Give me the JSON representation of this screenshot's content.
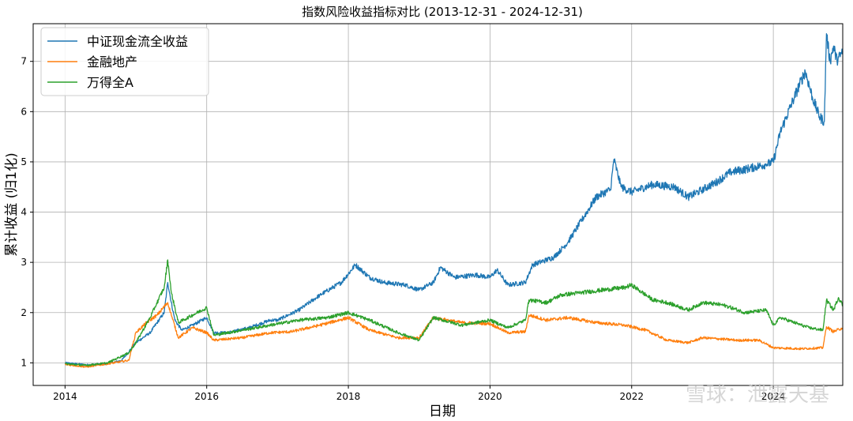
{
  "chart_data": {
    "type": "line",
    "title": "指数风险收益指标对比 (2013-12-31 - 2024-12-31)",
    "xlabel": "日期",
    "ylabel": "累计收益 (归1化)",
    "xlim": [
      2013.55,
      2024.98
    ],
    "ylim": [
      0.55,
      7.75
    ],
    "x_ticks": [
      "2014",
      "2016",
      "2018",
      "2020",
      "2022",
      "2024"
    ],
    "y_ticks": [
      "1",
      "2",
      "3",
      "4",
      "5",
      "6",
      "7"
    ],
    "grid": true,
    "legend_position": "top-left",
    "colors": {
      "blue": "#1f77b4",
      "orange": "#ff7f0e",
      "green": "#2ca02c"
    },
    "series": [
      {
        "name": "中证现金流全收益",
        "color": "#1f77b4",
        "points": [
          [
            2014.0,
            1.0
          ],
          [
            2014.3,
            0.96
          ],
          [
            2014.6,
            0.98
          ],
          [
            2014.8,
            1.05
          ],
          [
            2015.0,
            1.4
          ],
          [
            2015.2,
            1.6
          ],
          [
            2015.4,
            2.0
          ],
          [
            2015.45,
            2.6
          ],
          [
            2015.5,
            2.2
          ],
          [
            2015.55,
            1.85
          ],
          [
            2015.65,
            1.65
          ],
          [
            2015.8,
            1.75
          ],
          [
            2016.0,
            1.9
          ],
          [
            2016.1,
            1.6
          ],
          [
            2016.3,
            1.6
          ],
          [
            2016.6,
            1.7
          ],
          [
            2016.9,
            1.85
          ],
          [
            2017.0,
            1.85
          ],
          [
            2017.3,
            2.05
          ],
          [
            2017.6,
            2.35
          ],
          [
            2017.9,
            2.6
          ],
          [
            2018.1,
            2.95
          ],
          [
            2018.3,
            2.7
          ],
          [
            2018.5,
            2.6
          ],
          [
            2018.8,
            2.55
          ],
          [
            2019.0,
            2.45
          ],
          [
            2019.2,
            2.6
          ],
          [
            2019.3,
            2.9
          ],
          [
            2019.5,
            2.7
          ],
          [
            2019.8,
            2.75
          ],
          [
            2020.0,
            2.7
          ],
          [
            2020.1,
            2.85
          ],
          [
            2020.25,
            2.55
          ],
          [
            2020.5,
            2.6
          ],
          [
            2020.6,
            2.95
          ],
          [
            2020.9,
            3.1
          ],
          [
            2021.1,
            3.4
          ],
          [
            2021.3,
            3.85
          ],
          [
            2021.5,
            4.3
          ],
          [
            2021.7,
            4.45
          ],
          [
            2021.75,
            5.05
          ],
          [
            2021.85,
            4.5
          ],
          [
            2022.0,
            4.4
          ],
          [
            2022.3,
            4.55
          ],
          [
            2022.6,
            4.5
          ],
          [
            2022.8,
            4.3
          ],
          [
            2023.0,
            4.45
          ],
          [
            2023.2,
            4.6
          ],
          [
            2023.4,
            4.8
          ],
          [
            2023.6,
            4.85
          ],
          [
            2023.9,
            4.95
          ],
          [
            2024.0,
            5.0
          ],
          [
            2024.1,
            5.6
          ],
          [
            2024.3,
            6.3
          ],
          [
            2024.45,
            6.8
          ],
          [
            2024.55,
            6.3
          ],
          [
            2024.65,
            5.9
          ],
          [
            2024.72,
            5.8
          ],
          [
            2024.75,
            7.55
          ],
          [
            2024.8,
            7.0
          ],
          [
            2024.85,
            7.3
          ],
          [
            2024.9,
            7.0
          ],
          [
            2024.98,
            7.2
          ]
        ]
      },
      {
        "name": "金融地产",
        "color": "#ff7f0e",
        "points": [
          [
            2014.0,
            0.97
          ],
          [
            2014.3,
            0.92
          ],
          [
            2014.6,
            0.98
          ],
          [
            2014.9,
            1.05
          ],
          [
            2015.0,
            1.6
          ],
          [
            2015.15,
            1.8
          ],
          [
            2015.3,
            1.95
          ],
          [
            2015.45,
            2.2
          ],
          [
            2015.5,
            1.95
          ],
          [
            2015.6,
            1.5
          ],
          [
            2015.8,
            1.7
          ],
          [
            2016.0,
            1.6
          ],
          [
            2016.1,
            1.45
          ],
          [
            2016.5,
            1.5
          ],
          [
            2016.9,
            1.6
          ],
          [
            2017.2,
            1.62
          ],
          [
            2017.6,
            1.75
          ],
          [
            2018.0,
            1.9
          ],
          [
            2018.3,
            1.65
          ],
          [
            2018.7,
            1.5
          ],
          [
            2019.0,
            1.5
          ],
          [
            2019.2,
            1.9
          ],
          [
            2019.6,
            1.8
          ],
          [
            2020.0,
            1.78
          ],
          [
            2020.25,
            1.6
          ],
          [
            2020.5,
            1.62
          ],
          [
            2020.55,
            1.95
          ],
          [
            2020.8,
            1.85
          ],
          [
            2021.1,
            1.9
          ],
          [
            2021.5,
            1.8
          ],
          [
            2021.9,
            1.75
          ],
          [
            2022.2,
            1.65
          ],
          [
            2022.5,
            1.45
          ],
          [
            2022.8,
            1.4
          ],
          [
            2023.0,
            1.5
          ],
          [
            2023.2,
            1.48
          ],
          [
            2023.5,
            1.45
          ],
          [
            2023.8,
            1.45
          ],
          [
            2024.0,
            1.3
          ],
          [
            2024.4,
            1.28
          ],
          [
            2024.7,
            1.3
          ],
          [
            2024.75,
            1.72
          ],
          [
            2024.85,
            1.62
          ],
          [
            2024.98,
            1.7
          ]
        ]
      },
      {
        "name": "万得全A",
        "color": "#2ca02c",
        "points": [
          [
            2014.0,
            0.98
          ],
          [
            2014.3,
            0.95
          ],
          [
            2014.6,
            1.0
          ],
          [
            2014.9,
            1.2
          ],
          [
            2015.0,
            1.4
          ],
          [
            2015.2,
            1.9
          ],
          [
            2015.4,
            2.5
          ],
          [
            2015.45,
            3.05
          ],
          [
            2015.5,
            2.4
          ],
          [
            2015.6,
            1.8
          ],
          [
            2015.8,
            1.95
          ],
          [
            2016.0,
            2.1
          ],
          [
            2016.1,
            1.55
          ],
          [
            2016.5,
            1.65
          ],
          [
            2016.9,
            1.75
          ],
          [
            2017.3,
            1.85
          ],
          [
            2017.7,
            1.9
          ],
          [
            2018.0,
            2.0
          ],
          [
            2018.3,
            1.85
          ],
          [
            2018.7,
            1.6
          ],
          [
            2019.0,
            1.45
          ],
          [
            2019.2,
            1.9
          ],
          [
            2019.6,
            1.75
          ],
          [
            2020.0,
            1.85
          ],
          [
            2020.25,
            1.7
          ],
          [
            2020.5,
            1.85
          ],
          [
            2020.55,
            2.25
          ],
          [
            2020.8,
            2.2
          ],
          [
            2021.0,
            2.35
          ],
          [
            2021.3,
            2.4
          ],
          [
            2021.6,
            2.45
          ],
          [
            2021.9,
            2.5
          ],
          [
            2022.0,
            2.55
          ],
          [
            2022.3,
            2.25
          ],
          [
            2022.5,
            2.2
          ],
          [
            2022.8,
            2.05
          ],
          [
            2023.0,
            2.2
          ],
          [
            2023.3,
            2.15
          ],
          [
            2023.6,
            2.0
          ],
          [
            2023.9,
            2.05
          ],
          [
            2024.0,
            1.75
          ],
          [
            2024.1,
            1.9
          ],
          [
            2024.5,
            1.7
          ],
          [
            2024.7,
            1.65
          ],
          [
            2024.75,
            2.25
          ],
          [
            2024.85,
            2.05
          ],
          [
            2024.92,
            2.3
          ],
          [
            2024.98,
            2.15
          ]
        ]
      }
    ]
  },
  "watermark": "雪球：泄露天基"
}
